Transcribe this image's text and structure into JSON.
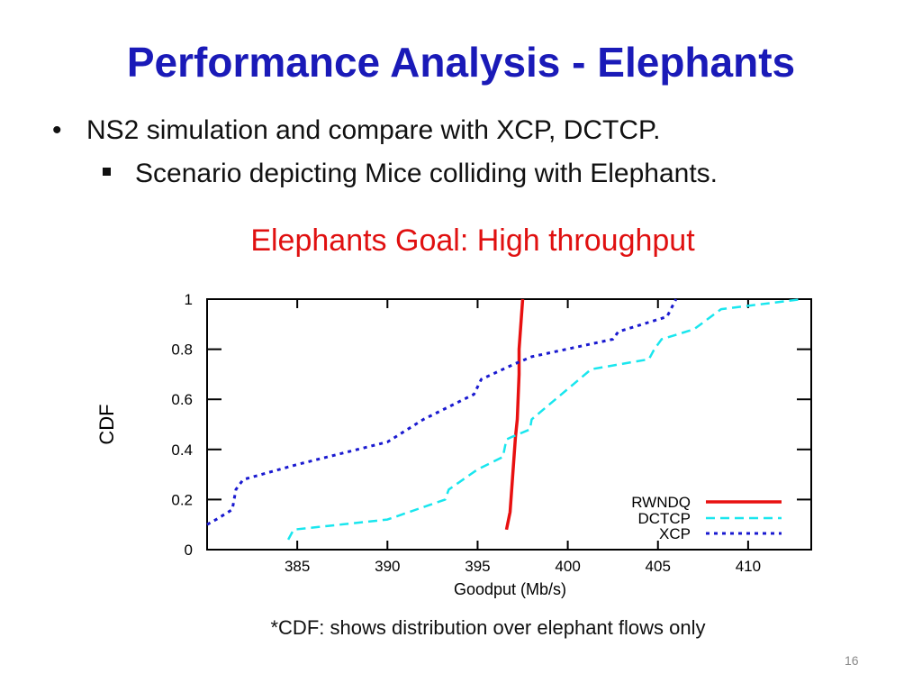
{
  "slide": {
    "title": "Performance Analysis - Elephants",
    "bullet": "NS2 simulation and compare with XCP, DCTCP.",
    "sub_bullet": "Scenario depicting Mice colliding with Elephants.",
    "goal": "Elephants Goal: High throughput",
    "footnote": "*CDF: shows distribution over elephant flows only",
    "page_number": "16"
  },
  "chart_data": {
    "type": "line",
    "title": "",
    "xlabel": "Goodput (Mb/s)",
    "ylabel": "CDF",
    "xlim": [
      380,
      413.5
    ],
    "ylim": [
      0,
      1
    ],
    "x_ticks": [
      385,
      390,
      395,
      400,
      405,
      410
    ],
    "y_ticks": [
      0,
      0.2,
      0.4,
      0.6,
      0.8,
      1
    ],
    "y_tick_labels": [
      "0",
      "0.2",
      "0.4",
      "0.6",
      "0.8",
      "1"
    ],
    "legend_position": "bottom-right",
    "series": [
      {
        "name": "RWNDQ",
        "color": "#e81010",
        "style": "solid",
        "x": [
          396.6,
          396.8,
          396.9,
          397.0,
          397.1,
          397.2,
          397.3,
          397.3,
          397.4,
          397.5
        ],
        "y": [
          0.08,
          0.15,
          0.25,
          0.35,
          0.45,
          0.52,
          0.7,
          0.8,
          0.9,
          1.0
        ]
      },
      {
        "name": "DCTCP",
        "color": "#19e6ee",
        "style": "dashed",
        "x": [
          384.5,
          384.8,
          390.0,
          393.2,
          393.4,
          395.0,
          396.4,
          396.6,
          396.9,
          397.9,
          398.0,
          401.3,
          404.5,
          404.8,
          405.2,
          407.0,
          408.5,
          413.0
        ],
        "y": [
          0.04,
          0.08,
          0.12,
          0.2,
          0.24,
          0.32,
          0.37,
          0.44,
          0.45,
          0.48,
          0.52,
          0.72,
          0.76,
          0.8,
          0.84,
          0.88,
          0.96,
          1.0
        ]
      },
      {
        "name": "XCP",
        "color": "#1a1ad0",
        "style": "dotted",
        "x": [
          380,
          380.5,
          381.4,
          381.6,
          382.0,
          385.0,
          390.0,
          392.0,
          394.8,
          395.2,
          397.0,
          398.0,
          402.5,
          402.8,
          405.5,
          406.0
        ],
        "y": [
          0.1,
          0.12,
          0.16,
          0.24,
          0.28,
          0.34,
          0.43,
          0.52,
          0.62,
          0.68,
          0.74,
          0.77,
          0.84,
          0.87,
          0.93,
          1.0
        ]
      }
    ]
  }
}
